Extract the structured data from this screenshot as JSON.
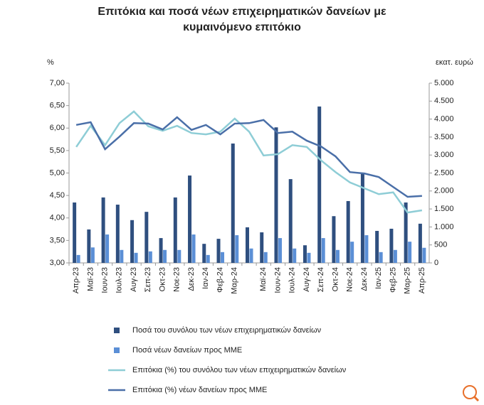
{
  "chart_data": {
    "type": "bar-line",
    "title": "Επιτόκια και ποσά νέων επιχειρηματικών δανείων με κυμαινόμενο επιτόκιο",
    "y_label": "%",
    "y2_label": "εκατ. ευρώ",
    "categories": [
      "Απρ-23",
      "Μαϊ-23",
      "Ιουν-23",
      "Ιουλ-23",
      "Αυγ-23",
      "Σεπ-23",
      "Οκτ-23",
      "Νοε-23",
      "Δεκ-23",
      "Ιαν-24",
      "Φεβ-24",
      "Μαρ-24",
      null,
      "Μαϊ-24",
      "Ιουν-24",
      "Ιουλ-24",
      "Αυγ-24",
      "Σεπ-24",
      "Οκτ-24",
      "Νοε-24",
      "Δεκ-24",
      "Ιαν-25",
      "Φεβ-25",
      "Μαρ-25",
      "Απρ-25"
    ],
    "ylim": [
      3,
      7
    ],
    "yticks": [
      {
        "value": 3,
        "label": "3,00"
      },
      {
        "value": 3.5,
        "label": "3,50"
      },
      {
        "value": 4,
        "label": "4,00"
      },
      {
        "value": 4.5,
        "label": "4,50"
      },
      {
        "value": 5,
        "label": "5,00"
      },
      {
        "value": 5.5,
        "label": "5,50"
      },
      {
        "value": 6,
        "label": "6,00"
      },
      {
        "value": 6.5,
        "label": "6,50"
      },
      {
        "value": 7,
        "label": "7,00"
      }
    ],
    "y2lim": [
      0,
      5000
    ],
    "y2ticks": [
      0,
      500,
      {
        "value": 1000,
        "label": "1.000"
      },
      {
        "value": 1500,
        "label": "1.500"
      },
      {
        "value": 2000,
        "label": "2.000"
      },
      {
        "value": 2500,
        "label": "2.500"
      },
      {
        "value": 3000,
        "label": "3.000"
      },
      {
        "value": 3500,
        "label": "3.500"
      },
      {
        "value": 4000,
        "label": "4.000"
      },
      {
        "value": 4500,
        "label": "4.500"
      },
      {
        "value": 5000,
        "label": "5.000"
      }
    ],
    "series": [
      {
        "name": "Ποσά του συνόλου των νέων επιχειρηματικών δανείων",
        "kind": "bar",
        "axis": "y2",
        "color": "#2f4f7f",
        "values": [
          1680,
          930,
          1820,
          1620,
          1190,
          1420,
          690,
          1820,
          2430,
          530,
          670,
          3320,
          990,
          850,
          3770,
          2330,
          490,
          4350,
          1300,
          1720,
          2490,
          890,
          950,
          1680,
          1090
        ]
      },
      {
        "name": "Ποσά νέων δανείων προς ΜΜΕ",
        "kind": "bar",
        "axis": "y2",
        "color": "#5b8fd6",
        "values": [
          220,
          430,
          790,
          360,
          280,
          320,
          360,
          360,
          790,
          220,
          300,
          770,
          400,
          300,
          690,
          400,
          280,
          690,
          360,
          590,
          770,
          300,
          360,
          590,
          420
        ]
      },
      {
        "name": "Επιτόκια (%) του συνόλου των νέων επιχειρηματικών δανείων",
        "kind": "line",
        "color": "#8ecdd6",
        "values": [
          5.58,
          6.05,
          5.62,
          6.11,
          6.37,
          6.04,
          5.94,
          6.05,
          5.89,
          5.86,
          5.92,
          6.21,
          5.92,
          5.39,
          5.42,
          5.62,
          5.58,
          5.28,
          5.02,
          4.79,
          4.66,
          4.53,
          4.57,
          4.12,
          4.17
        ]
      },
      {
        "name": "Επιτόκια (%) νέων δανείων προς ΜΜΕ",
        "kind": "line",
        "color": "#4a6fa8",
        "values": [
          6.07,
          6.13,
          5.53,
          5.81,
          6.11,
          6.1,
          5.97,
          6.24,
          5.96,
          6.07,
          5.86,
          6.1,
          6.11,
          6.18,
          5.89,
          5.92,
          5.72,
          5.59,
          5.37,
          5.02,
          4.99,
          4.91,
          4.69,
          4.47,
          4.49
        ]
      }
    ]
  }
}
